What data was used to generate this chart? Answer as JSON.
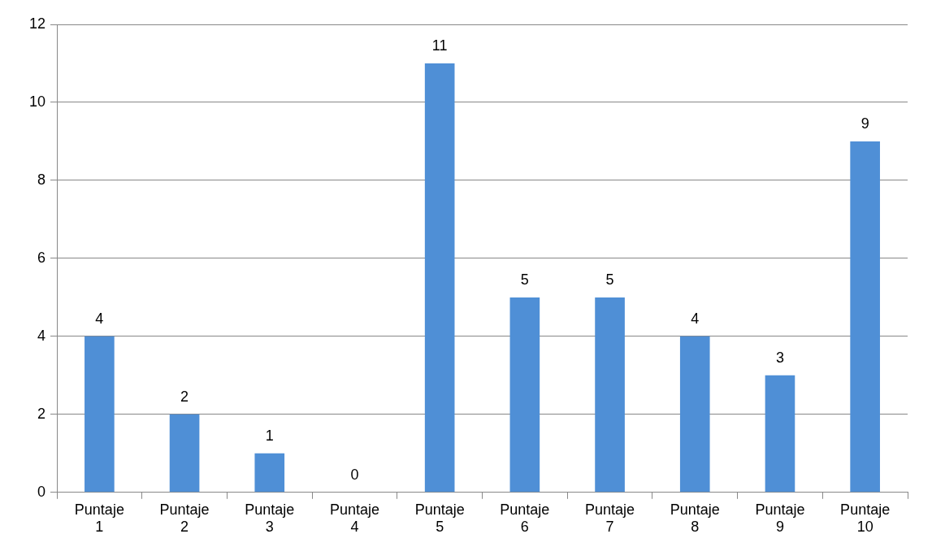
{
  "chart_data": {
    "type": "bar",
    "categories": [
      "Puntaje 1",
      "Puntaje 2",
      "Puntaje 3",
      "Puntaje 4",
      "Puntaje 5",
      "Puntaje 6",
      "Puntaje 7",
      "Puntaje 8",
      "Puntaje 9",
      "Puntaje 10"
    ],
    "values": [
      4,
      2,
      1,
      0,
      11,
      5,
      5,
      4,
      3,
      9
    ],
    "color": "#4f8fd6",
    "ylim": [
      0,
      12
    ],
    "yticks": [
      0,
      2,
      4,
      6,
      8,
      10,
      12
    ],
    "grid": "y",
    "legend": false,
    "data_labels": true
  }
}
